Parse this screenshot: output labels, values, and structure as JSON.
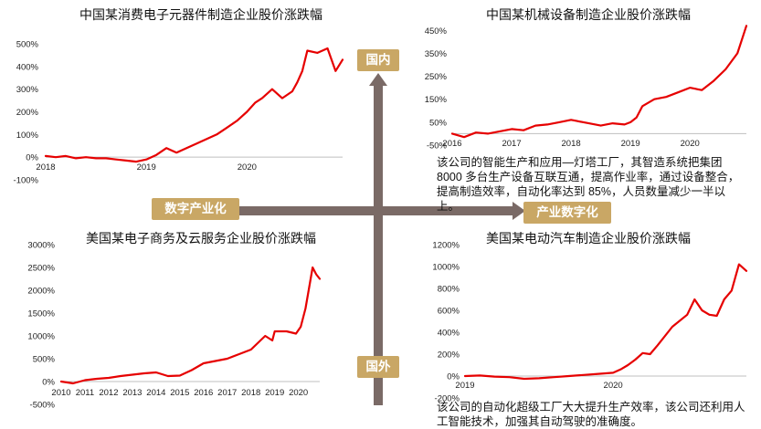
{
  "quadrant_labels": {
    "top": "国内",
    "bottom": "国外",
    "left": "数字产业化",
    "right": "产业数字化"
  },
  "notes": {
    "top_right": "该公司的智能生产和应用—灯塔工厂，其智造系统把集团 8000 多台生产设备互联互通，提高作业率，通过设备整合，提高制造效率，自动化率达到 85%，人员数量减少一半以上。",
    "bottom_right": "该公司的自动化超级工厂大大提升生产效率，该公司还利用人工智能技术，加强其自动驾驶的准确度。"
  },
  "colors": {
    "line": "#e60000",
    "tag": "#c9a765",
    "arrow": "#7a6a66"
  },
  "chart_data": [
    {
      "type": "line",
      "title": "中国某消费电子元器件制造企业股价涨跌幅",
      "ylim": [
        -100,
        500
      ],
      "ytick_values": [
        -100,
        0,
        100,
        200,
        300,
        400,
        500
      ],
      "ytick_labels": [
        "-100%",
        "0%",
        "100%",
        "200%",
        "300%",
        "400%",
        "500%"
      ],
      "xlim": [
        2018.0,
        2020.95
      ],
      "xtick_values": [
        2018,
        2019,
        2020
      ],
      "xtick_labels": [
        "2018",
        "2019",
        "2020"
      ],
      "series": [
        {
          "x": [
            2018.0,
            2018.1,
            2018.2,
            2018.3,
            2018.4,
            2018.5,
            2018.6,
            2018.7,
            2018.8,
            2018.9,
            2019.0,
            2019.1,
            2019.2,
            2019.3,
            2019.4,
            2019.5,
            2019.6,
            2019.7,
            2019.8,
            2019.9,
            2020.0,
            2020.08,
            2020.15,
            2020.25,
            2020.35,
            2020.45,
            2020.5,
            2020.55,
            2020.6,
            2020.7,
            2020.8,
            2020.88,
            2020.95
          ],
          "y": [
            5,
            0,
            5,
            -5,
            0,
            -5,
            -5,
            -10,
            -15,
            -20,
            -10,
            10,
            40,
            20,
            40,
            60,
            80,
            100,
            130,
            160,
            200,
            240,
            260,
            300,
            260,
            290,
            330,
            380,
            470,
            460,
            480,
            380,
            430
          ]
        }
      ]
    },
    {
      "type": "line",
      "title": "中国某机械设备制造企业股价涨跌幅",
      "ylim": [
        -50,
        475
      ],
      "ytick_values": [
        -50,
        50,
        150,
        250,
        350,
        450
      ],
      "ytick_labels": [
        "-50%",
        "50%",
        "150%",
        "250%",
        "350%",
        "450%"
      ],
      "xlim": [
        2016.0,
        2020.95
      ],
      "xtick_values": [
        2016,
        2017,
        2018,
        2019,
        2020
      ],
      "xtick_labels": [
        "2016",
        "2017",
        "2018",
        "2019",
        "2020"
      ],
      "series": [
        {
          "x": [
            2016.0,
            2016.2,
            2016.4,
            2016.6,
            2016.8,
            2017.0,
            2017.2,
            2017.4,
            2017.6,
            2017.8,
            2018.0,
            2018.1,
            2018.3,
            2018.5,
            2018.7,
            2018.9,
            2019.0,
            2019.1,
            2019.2,
            2019.4,
            2019.6,
            2019.8,
            2020.0,
            2020.2,
            2020.4,
            2020.6,
            2020.8,
            2020.95
          ],
          "y": [
            0,
            -15,
            5,
            0,
            10,
            20,
            15,
            35,
            40,
            50,
            60,
            55,
            45,
            35,
            45,
            40,
            50,
            70,
            120,
            150,
            160,
            180,
            200,
            190,
            230,
            280,
            350,
            470
          ]
        }
      ]
    },
    {
      "type": "line",
      "title": "美国某电子商务及云服务企业股价涨跌幅",
      "ylim": [
        -500,
        3000
      ],
      "ytick_values": [
        -500,
        0,
        500,
        1000,
        1500,
        2000,
        2500,
        3000
      ],
      "ytick_labels": [
        "-500%",
        "0%",
        "500%",
        "1000%",
        "1500%",
        "2000%",
        "2500%",
        "3000%"
      ],
      "xlim": [
        2010.0,
        2020.9
      ],
      "xtick_values": [
        2010,
        2011,
        2012,
        2013,
        2014,
        2015,
        2016,
        2017,
        2018,
        2019,
        2020
      ],
      "xtick_labels": [
        "2010",
        "2011",
        "2012",
        "2013",
        "2014",
        "2015",
        "2016",
        "2017",
        "2018",
        "2019",
        "2020"
      ],
      "series": [
        {
          "x": [
            2010.0,
            2010.5,
            2011.0,
            2011.5,
            2012.0,
            2012.5,
            2013.0,
            2013.5,
            2014.0,
            2014.5,
            2015.0,
            2015.5,
            2016.0,
            2016.5,
            2017.0,
            2017.5,
            2018.0,
            2018.3,
            2018.6,
            2018.9,
            2019.0,
            2019.5,
            2019.9,
            2020.1,
            2020.3,
            2020.5,
            2020.6,
            2020.75,
            2020.9
          ],
          "y": [
            0,
            -40,
            30,
            60,
            80,
            120,
            150,
            180,
            200,
            120,
            130,
            250,
            400,
            450,
            500,
            600,
            700,
            850,
            1000,
            900,
            1100,
            1100,
            1050,
            1200,
            1600,
            2200,
            2500,
            2350,
            2250
          ]
        }
      ]
    },
    {
      "type": "line",
      "title": "美国某电动汽车制造企业股价涨跌幅",
      "ylim": [
        -200,
        1200
      ],
      "ytick_values": [
        -200,
        0,
        200,
        400,
        600,
        800,
        1000,
        1200
      ],
      "ytick_labels": [
        "-200%",
        "0%",
        "200%",
        "400%",
        "600%",
        "800%",
        "1000%",
        "1200%"
      ],
      "xlim": [
        2019.0,
        2020.9
      ],
      "xtick_values": [
        2019,
        2020
      ],
      "xtick_labels": [
        "2019",
        "2020"
      ],
      "series": [
        {
          "x": [
            2019.0,
            2019.1,
            2019.2,
            2019.3,
            2019.4,
            2019.5,
            2019.6,
            2019.7,
            2019.8,
            2019.9,
            2020.0,
            2020.05,
            2020.1,
            2020.15,
            2020.2,
            2020.25,
            2020.3,
            2020.4,
            2020.5,
            2020.55,
            2020.6,
            2020.65,
            2020.7,
            2020.75,
            2020.8,
            2020.85,
            2020.9
          ],
          "y": [
            0,
            5,
            -5,
            -10,
            -25,
            -20,
            -10,
            0,
            10,
            20,
            30,
            60,
            100,
            150,
            210,
            200,
            280,
            450,
            560,
            700,
            600,
            560,
            550,
            700,
            780,
            1020,
            960
          ]
        }
      ]
    }
  ]
}
